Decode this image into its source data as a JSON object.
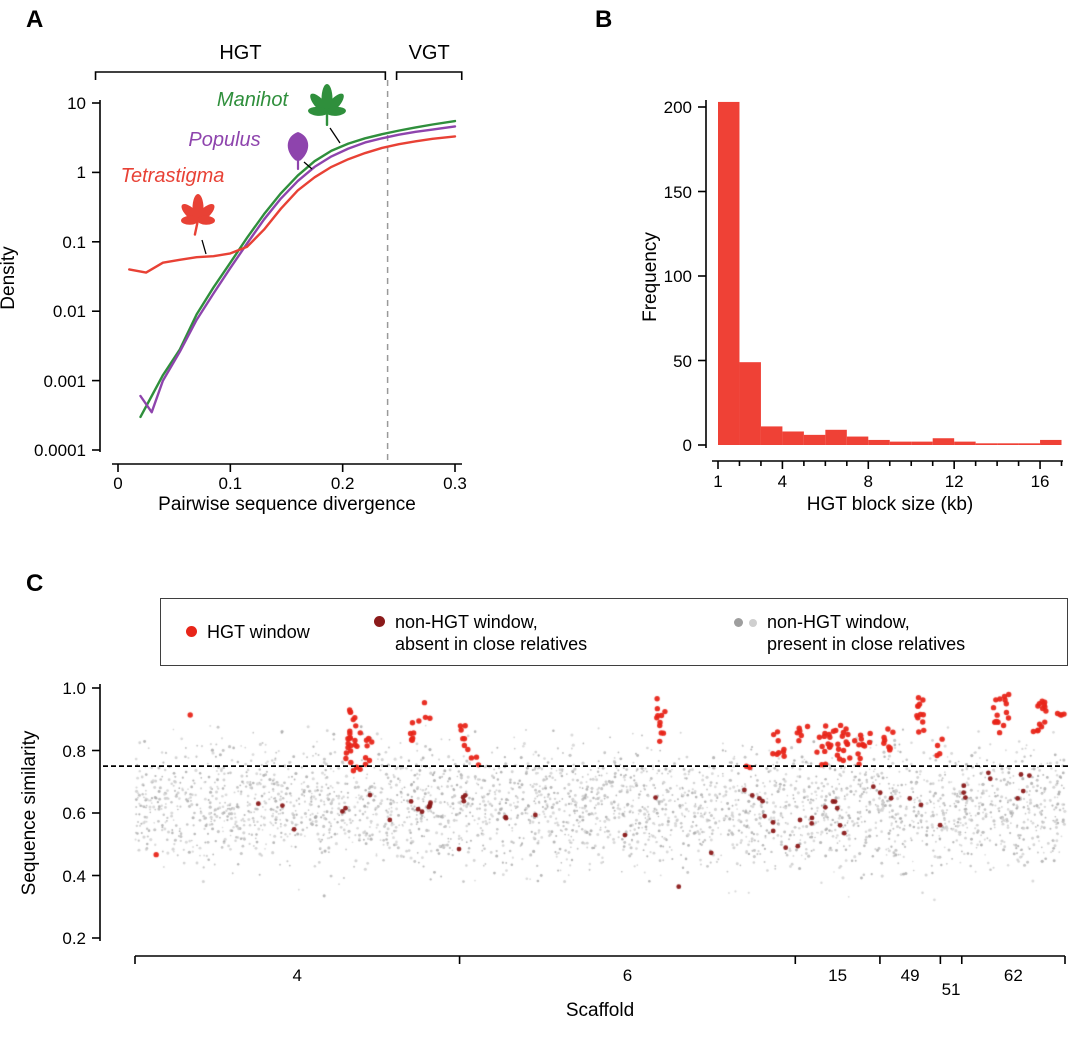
{
  "panels": {
    "a": {
      "label": "A",
      "ylabel": "Density",
      "xlabel": "Pairwise sequence divergence",
      "species": [
        {
          "name": "Manihot",
          "color": "#2f8f3c"
        },
        {
          "name": "Populus",
          "color": "#8e44ad"
        },
        {
          "name": "Tetrastigma",
          "color": "#e84135"
        }
      ]
    },
    "b": {
      "label": "B",
      "ylabel": "Frequency",
      "xlabel": "HGT block size (kb)"
    },
    "c": {
      "label": "C",
      "ylabel": "Sequence similarity",
      "xlabel": "Scaffold",
      "legend": {
        "items": [
          {
            "label_lines": [
              "HGT window"
            ],
            "marker_colors": [
              "#e82519"
            ]
          },
          {
            "label_lines": [
              "non-HGT window,",
              "absent in close relatives"
            ],
            "marker_colors": [
              "#8b1a1a"
            ]
          },
          {
            "label_lines": [
              "non-HGT window,",
              "present in close relatives"
            ],
            "marker_colors": [
              "#9e9e9e",
              "#cfcfcf"
            ]
          }
        ]
      }
    }
  },
  "chart_data": [
    {
      "panel": "A",
      "type": "line",
      "xlabel": "Pairwise sequence divergence",
      "ylabel": "Density",
      "xlim": [
        0,
        0.3
      ],
      "ylim": [
        0.0001,
        10
      ],
      "ylog": true,
      "xticks": [
        "0",
        "0.1",
        "0.2",
        "0.3"
      ],
      "yticks": [
        "10",
        "1",
        "0.1",
        "0.01",
        "0.001",
        "0.0001"
      ],
      "dashed_vline_x": 0.24,
      "dashed_vline_color": "#999999",
      "brackets": [
        {
          "label": "HGT",
          "x0": -0.02,
          "x1": 0.238
        },
        {
          "label": "VGT",
          "x0": 0.248,
          "x1": 0.306
        }
      ],
      "series": [
        {
          "name": "Manihot",
          "color": "#2f8f3c",
          "x": [
            0.02,
            0.03,
            0.04,
            0.055,
            0.07,
            0.085,
            0.1,
            0.115,
            0.13,
            0.145,
            0.16,
            0.175,
            0.19,
            0.205,
            0.22,
            0.235,
            0.25,
            0.265,
            0.28,
            0.3
          ],
          "y": [
            0.0003,
            0.0006,
            0.0012,
            0.0028,
            0.009,
            0.022,
            0.05,
            0.115,
            0.25,
            0.5,
            0.9,
            1.45,
            2.05,
            2.6,
            3.1,
            3.55,
            4.0,
            4.45,
            4.9,
            5.5
          ]
        },
        {
          "name": "Populus",
          "color": "#8e44ad",
          "x": [
            0.02,
            0.03,
            0.04,
            0.055,
            0.07,
            0.085,
            0.1,
            0.115,
            0.13,
            0.145,
            0.16,
            0.175,
            0.19,
            0.205,
            0.22,
            0.235,
            0.25,
            0.265,
            0.28,
            0.3
          ],
          "y": [
            0.0006,
            0.00035,
            0.001,
            0.0026,
            0.0075,
            0.018,
            0.042,
            0.095,
            0.21,
            0.42,
            0.75,
            1.2,
            1.7,
            2.2,
            2.7,
            3.1,
            3.5,
            3.85,
            4.15,
            4.6
          ]
        },
        {
          "name": "Tetrastigma",
          "color": "#e84135",
          "x": [
            0.01,
            0.025,
            0.04,
            0.055,
            0.07,
            0.085,
            0.1,
            0.115,
            0.13,
            0.145,
            0.16,
            0.175,
            0.19,
            0.205,
            0.22,
            0.235,
            0.25,
            0.265,
            0.28,
            0.3
          ],
          "y": [
            0.04,
            0.036,
            0.05,
            0.055,
            0.06,
            0.062,
            0.068,
            0.085,
            0.15,
            0.3,
            0.55,
            0.85,
            1.2,
            1.55,
            1.9,
            2.25,
            2.55,
            2.8,
            3.05,
            3.3
          ]
        }
      ]
    },
    {
      "panel": "B",
      "type": "bar",
      "xlabel": "HGT block size (kb)",
      "ylabel": "Frequency",
      "bar_color": "#ef4136",
      "bin_start": 1,
      "bin_width": 1,
      "counts": [
        203,
        49,
        11,
        8,
        6,
        9,
        5,
        3,
        2,
        2,
        4,
        2,
        1,
        1,
        1,
        3
      ],
      "xticks_labeled": [
        1,
        4,
        8,
        12,
        16
      ],
      "yticks": [
        0,
        50,
        100,
        150,
        200
      ],
      "xlim": [
        1,
        17
      ],
      "ylim": [
        0,
        210
      ]
    },
    {
      "panel": "C",
      "type": "scatter",
      "xlabel": "Scaffold",
      "ylabel": "Sequence similarity",
      "ylim": [
        0.2,
        1.0
      ],
      "yticks": [
        "1.0",
        "0.8",
        "0.6",
        "0.4",
        "0.2"
      ],
      "threshold_line_y": 0.75,
      "threshold_line_color": "#000000",
      "seed": 42,
      "scaffolds": [
        {
          "label": "4",
          "x0": 0.0,
          "x1": 0.349
        },
        {
          "label": "6",
          "x0": 0.349,
          "x1": 0.71
        },
        {
          "label": "15",
          "x0": 0.71,
          "x1": 0.801
        },
        {
          "label": "49",
          "x0": 0.801,
          "x1": 0.866
        },
        {
          "label": "51",
          "x0": 0.866,
          "x1": 0.889
        },
        {
          "label": "62",
          "x0": 0.889,
          "x1": 1.0
        }
      ],
      "series": [
        {
          "name": "non-HGT window, present in close relatives",
          "colors": [
            "#cccccc",
            "#bcbcbc",
            "#ababab",
            "#d4d4d4"
          ],
          "background": {
            "n": 3200,
            "y_mean": 0.62,
            "y_sd": 0.1,
            "y_min": 0.32,
            "y_max": 0.88
          }
        },
        {
          "name": "non-HGT window, absent in close relatives",
          "color": "#8b1a1a",
          "point_radius": 2.4,
          "clusters": [
            [
              0.16,
              0.015,
              0.6,
              0.65,
              2
            ],
            [
              0.185,
              0.008,
              0.54,
              0.56,
              1
            ],
            [
              0.23,
              0.008,
              0.6,
              0.68,
              3
            ],
            [
              0.3,
              0.012,
              0.57,
              0.66,
              6
            ],
            [
              0.315,
              0.006,
              0.62,
              0.64,
              2
            ],
            [
              0.35,
              0.008,
              0.45,
              0.5,
              1
            ],
            [
              0.355,
              0.006,
              0.63,
              0.66,
              3
            ],
            [
              0.4,
              0.007,
              0.55,
              0.62,
              2
            ],
            [
              0.435,
              0.005,
              0.58,
              0.6,
              1
            ],
            [
              0.52,
              0.008,
              0.52,
              0.56,
              1
            ],
            [
              0.56,
              0.006,
              0.62,
              0.65,
              1
            ],
            [
              0.6,
              0.008,
              0.35,
              0.37,
              1
            ],
            [
              0.62,
              0.006,
              0.46,
              0.48,
              1
            ],
            [
              0.66,
              0.008,
              0.63,
              0.7,
              4
            ],
            [
              0.685,
              0.006,
              0.52,
              0.6,
              3
            ],
            [
              0.7,
              0.006,
              0.47,
              0.5,
              2
            ],
            [
              0.73,
              0.008,
              0.55,
              0.65,
              4
            ],
            [
              0.75,
              0.006,
              0.6,
              0.68,
              3
            ],
            [
              0.77,
              0.008,
              0.52,
              0.58,
              2
            ],
            [
              0.8,
              0.006,
              0.62,
              0.7,
              3
            ],
            [
              0.835,
              0.005,
              0.6,
              0.66,
              2
            ],
            [
              0.86,
              0.005,
              0.55,
              0.58,
              1
            ],
            [
              0.89,
              0.005,
              0.62,
              0.72,
              3
            ],
            [
              0.915,
              0.004,
              0.7,
              0.73,
              2
            ],
            [
              0.95,
              0.004,
              0.64,
              0.68,
              2
            ],
            [
              0.96,
              0.004,
              0.71,
              0.735,
              2
            ]
          ]
        },
        {
          "name": "HGT window",
          "color": "#e82519",
          "point_radius": 2.7,
          "clusters": [
            [
              0.062,
              0.002,
              0.905,
              0.915,
              1
            ],
            [
              0.018,
              0.002,
              0.46,
              0.47,
              1
            ],
            [
              0.235,
              0.005,
              0.73,
              0.93,
              26
            ],
            [
              0.252,
              0.003,
              0.76,
              0.84,
              6
            ],
            [
              0.298,
              0.004,
              0.82,
              0.9,
              7
            ],
            [
              0.313,
              0.003,
              0.9,
              0.96,
              3
            ],
            [
              0.352,
              0.004,
              0.8,
              0.89,
              7
            ],
            [
              0.366,
              0.003,
              0.74,
              0.78,
              3
            ],
            [
              0.565,
              0.003,
              0.82,
              0.97,
              11
            ],
            [
              0.655,
              0.003,
              0.74,
              0.78,
              2
            ],
            [
              0.695,
              0.005,
              0.77,
              0.86,
              9
            ],
            [
              0.717,
              0.004,
              0.83,
              0.9,
              6
            ],
            [
              0.742,
              0.005,
              0.75,
              0.88,
              14
            ],
            [
              0.762,
              0.006,
              0.76,
              0.9,
              18
            ],
            [
              0.782,
              0.005,
              0.74,
              0.86,
              12
            ],
            [
              0.806,
              0.004,
              0.8,
              0.92,
              8
            ],
            [
              0.845,
              0.003,
              0.85,
              0.98,
              12
            ],
            [
              0.865,
              0.003,
              0.78,
              0.84,
              4
            ],
            [
              0.932,
              0.004,
              0.85,
              0.99,
              16
            ],
            [
              0.975,
              0.004,
              0.86,
              0.96,
              14
            ],
            [
              0.992,
              0.003,
              0.88,
              0.93,
              4
            ]
          ]
        }
      ]
    }
  ]
}
